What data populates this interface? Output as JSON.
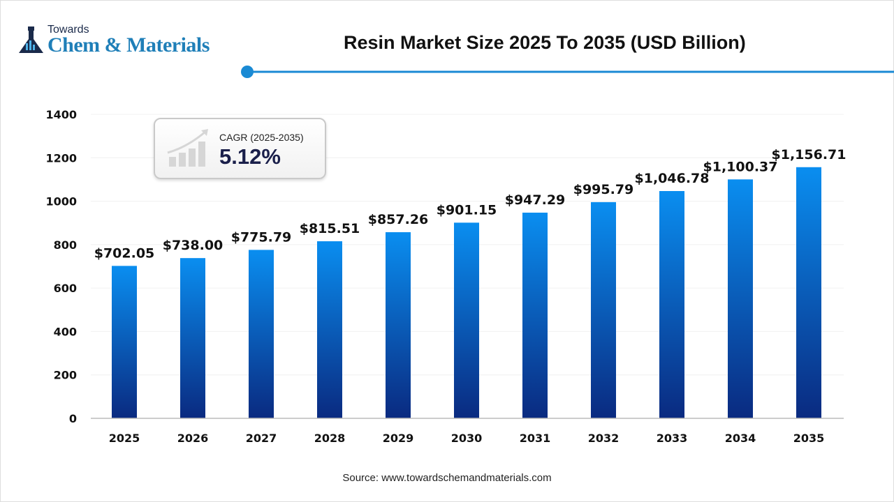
{
  "logo": {
    "line1": "Towards",
    "line2": "Chem & Materials"
  },
  "title": "Resin Market Size 2025 To 2035 (USD Billion)",
  "cagr": {
    "label": "CAGR (2025-2035)",
    "value": "5.12%",
    "icon": "growth-chart-icon"
  },
  "source": "Source: www.towardschemandmaterials.com",
  "colors": {
    "bar_top": "#0a8ef0",
    "bar_bottom": "#0a2a80",
    "accent": "#1a8ad4"
  },
  "chart_data": {
    "type": "bar",
    "title": "Resin Market Size 2025 To 2035 (USD Billion)",
    "categories": [
      "2025",
      "2026",
      "2027",
      "2028",
      "2029",
      "2030",
      "2031",
      "2032",
      "2033",
      "2034",
      "2035"
    ],
    "values": [
      702.05,
      738.0,
      775.79,
      815.51,
      857.26,
      901.15,
      947.29,
      995.79,
      1046.78,
      1100.37,
      1156.71
    ],
    "data_labels": [
      "$702.05",
      "$738.00",
      "$775.79",
      "$815.51",
      "$857.26",
      "$901.15",
      "$947.29",
      "$995.79",
      "$1,046.78",
      "$1,100.37",
      "$1,156.71"
    ],
    "yticks": [
      0,
      200,
      400,
      600,
      800,
      1000,
      1200,
      1400
    ],
    "ylim": [
      0,
      1400
    ],
    "xlabel": "",
    "ylabel": "",
    "grid": true
  }
}
